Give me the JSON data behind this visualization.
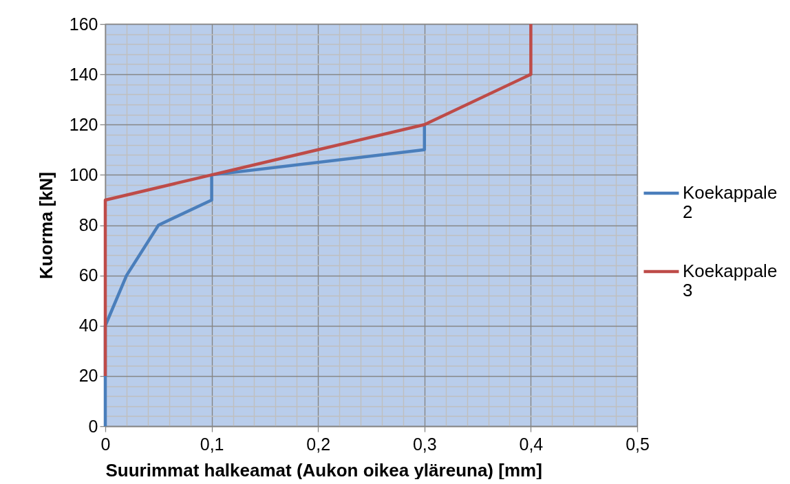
{
  "chart_data": {
    "type": "line",
    "xlabel": "Suurimmat halkeamat (Aukon oikea yläreuna) [mm]",
    "ylabel": "Kuorma [kN]",
    "series": [
      {
        "name": "Koekappale 2",
        "color": "#4a7ebb",
        "x": [
          0,
          0,
          0,
          0.02,
          0.05,
          0.1,
          0.1,
          0.3,
          0.3
        ],
        "values": [
          0,
          20,
          40,
          60,
          80,
          90,
          100,
          110,
          120
        ]
      },
      {
        "name": "Koekappale 3",
        "color": "#be4b48",
        "x": [
          0,
          0,
          0,
          0,
          0,
          0.1,
          0.2,
          0.3,
          0.4,
          0.4
        ],
        "values": [
          20,
          40,
          60,
          80,
          90,
          100,
          110,
          120,
          140,
          160
        ]
      }
    ],
    "xlim": [
      0,
      0.5
    ],
    "xticks": [
      0,
      {
        "value": 0.1,
        "label": "0,1"
      },
      {
        "value": 0.2,
        "label": "0,2"
      },
      {
        "value": 0.3,
        "label": "0,3"
      },
      {
        "value": 0.4,
        "label": "0,4"
      },
      {
        "value": 0.5,
        "label": "0,5"
      }
    ],
    "ylim": [
      0,
      160
    ],
    "yticks": [
      0,
      20,
      40,
      60,
      80,
      100,
      120,
      140,
      160
    ],
    "grid": true,
    "legend": "right",
    "line_style": "solid"
  }
}
